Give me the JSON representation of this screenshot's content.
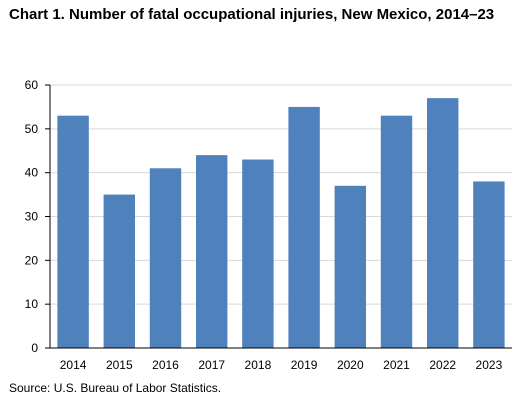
{
  "chart_data": {
    "type": "bar",
    "title": "Chart 1. Number of fatal occupational injuries,  New Mexico, 2014–23",
    "xlabel": "",
    "ylabel": "",
    "categories": [
      "2014",
      "2015",
      "2016",
      "2017",
      "2018",
      "2019",
      "2020",
      "2021",
      "2022",
      "2023"
    ],
    "values": [
      53,
      35,
      41,
      44,
      43,
      55,
      37,
      53,
      57,
      38
    ],
    "ylim": [
      0,
      60
    ],
    "yticks": [
      0,
      10,
      20,
      30,
      40,
      50,
      60
    ],
    "grid": true,
    "bar_color": "#4f81bd",
    "grid_color": "#d9d9d9",
    "axis_color": "#000000"
  },
  "source": "Source: U.S. Bureau  of Labor Statistics."
}
